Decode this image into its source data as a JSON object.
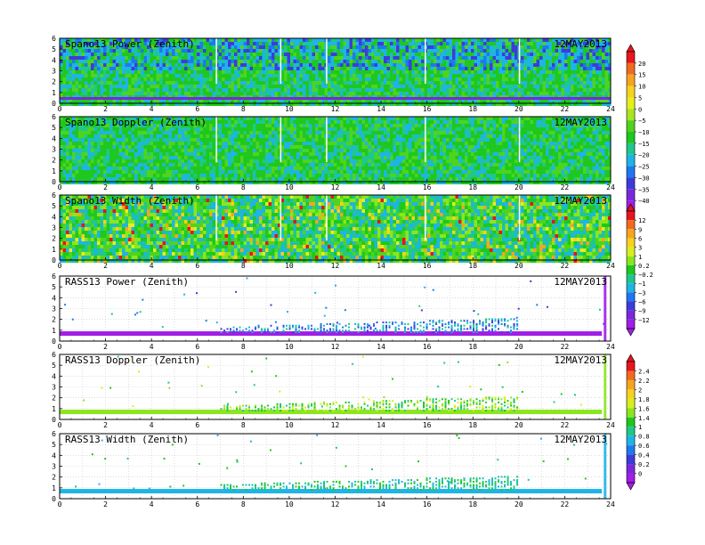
{
  "chart_data": [
    {
      "type": "heatmap",
      "title": "Spano13 Power (Zenith)",
      "date": "12MAY2013",
      "xlim": [
        0,
        24
      ],
      "ylim": [
        0,
        6
      ],
      "xticks": [
        "0",
        "2",
        "4",
        "6",
        "8",
        "10",
        "12",
        "14",
        "16",
        "18",
        "20",
        "22",
        "24"
      ],
      "yticks": [
        "0",
        "1",
        "2",
        "3",
        "4",
        "5",
        "6"
      ],
      "colorbar": "a"
    },
    {
      "type": "heatmap",
      "title": "Spano13 Doppler (Zenith)",
      "date": "12MAY2013",
      "xlim": [
        0,
        24
      ],
      "ylim": [
        0,
        6
      ],
      "xticks": [
        "0",
        "2",
        "4",
        "6",
        "8",
        "10",
        "12",
        "14",
        "16",
        "18",
        "20",
        "22",
        "24"
      ],
      "yticks": [
        "0",
        "1",
        "2",
        "3",
        "4",
        "5",
        "6"
      ],
      "colorbar": "a"
    },
    {
      "type": "heatmap",
      "title": "Spano13 Width (Zenith)",
      "date": "12MAY2013",
      "xlim": [
        0,
        24
      ],
      "ylim": [
        0,
        6
      ],
      "xticks": [
        "0",
        "2",
        "4",
        "6",
        "8",
        "10",
        "12",
        "14",
        "16",
        "18",
        "20",
        "22",
        "24"
      ],
      "yticks": [
        "0",
        "1",
        "2",
        "3",
        "4",
        "5",
        "6"
      ],
      "colorbar": "b"
    },
    {
      "type": "heatmap",
      "title": "RASS13 Power (Zenith)",
      "date": "12MAY2013",
      "xlim": [
        0,
        24
      ],
      "ylim": [
        0,
        6
      ],
      "xticks": [
        "0",
        "2",
        "4",
        "6",
        "8",
        "10",
        "12",
        "14",
        "16",
        "18",
        "20",
        "22",
        "24"
      ],
      "yticks": [
        "0",
        "1",
        "2",
        "3",
        "4",
        "5",
        "6"
      ],
      "colorbar": "b"
    },
    {
      "type": "heatmap",
      "title": "RASS13 Doppler (Zenith)",
      "date": "12MAY2013",
      "xlim": [
        0,
        24
      ],
      "ylim": [
        0,
        6
      ],
      "xticks": [
        "0",
        "2",
        "4",
        "6",
        "8",
        "10",
        "12",
        "14",
        "16",
        "18",
        "20",
        "22",
        "24"
      ],
      "yticks": [
        "0",
        "1",
        "2",
        "3",
        "4",
        "5",
        "6"
      ],
      "colorbar": "c"
    },
    {
      "type": "heatmap",
      "title": "RASS13 Width (Zenith)",
      "date": "12MAY2013",
      "xlim": [
        0,
        24
      ],
      "ylim": [
        0,
        6
      ],
      "xticks": [
        "0",
        "2",
        "4",
        "6",
        "8",
        "10",
        "12",
        "14",
        "16",
        "18",
        "20",
        "22",
        "24"
      ],
      "yticks": [
        "0",
        "1",
        "2",
        "3",
        "4",
        "5",
        "6"
      ],
      "colorbar": "c"
    }
  ],
  "colorbars": {
    "a": {
      "labels": [
        "20",
        "15",
        "10",
        "5",
        "0",
        "−5",
        "−10",
        "−15",
        "−20",
        "−25",
        "−30",
        "−35",
        "−40"
      ],
      "colors": [
        "#e8141e",
        "#f26a1e",
        "#f7a51e",
        "#f7d21e",
        "#e6ee1e",
        "#a8e61e",
        "#4fd41e",
        "#1ec81e",
        "#1ec88c",
        "#1eb4e6",
        "#1e78f0",
        "#3c3cdc",
        "#7a28dc",
        "#a01ee6"
      ]
    },
    "b": {
      "labels": [
        "12",
        "9",
        "6",
        "3",
        "1",
        "0.2",
        "−0.2",
        "−1",
        "−3",
        "−6",
        "−9",
        "−12"
      ],
      "colors": [
        "#e8141e",
        "#f26a1e",
        "#f7a51e",
        "#f7d21e",
        "#d8ee1e",
        "#8ce61e",
        "#1ec81e",
        "#1ec88c",
        "#1eb4e6",
        "#1e78f0",
        "#3c3cdc",
        "#7a28dc",
        "#a01ee6"
      ]
    },
    "c": {
      "labels": [
        "2.4",
        "2.2",
        "2",
        "1.8",
        "1.6",
        "1.4",
        "1",
        "0.8",
        "0.6",
        "0.4",
        "0.2",
        "0"
      ],
      "colors": [
        "#e8141e",
        "#f26a1e",
        "#f7a51e",
        "#f7d21e",
        "#d8ee1e",
        "#8ce61e",
        "#1ec81e",
        "#1ec88c",
        "#1eb4e6",
        "#1e78f0",
        "#3c3cdc",
        "#7a28dc",
        "#a01ee6"
      ]
    }
  }
}
